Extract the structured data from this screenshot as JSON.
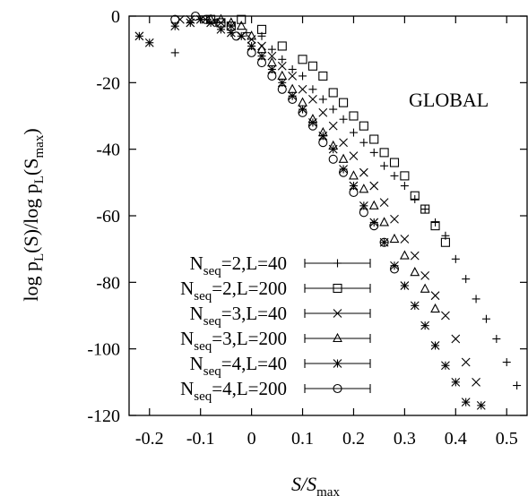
{
  "chart_data": {
    "type": "scatter",
    "title": "",
    "annotation": "GLOBAL",
    "xlabel": {
      "main": "S/S",
      "sub": "max"
    },
    "ylabel": {
      "pre": "log p",
      "sub1": "L",
      "mid": "(S)/log p",
      "sub2": "L",
      "mid2": "(S",
      "sub3": "max",
      "post": ")"
    },
    "xlim": [
      -0.24,
      0.54
    ],
    "ylim": [
      -120,
      0
    ],
    "x_ticks": [
      -0.2,
      -0.1,
      0,
      0.1,
      0.2,
      0.3,
      0.4,
      0.5
    ],
    "x_tick_labels": [
      "-0.2",
      "-0.1",
      "0",
      "0.1",
      "0.2",
      "0.3",
      "0.4",
      "0.5"
    ],
    "y_ticks": [
      0,
      -20,
      -40,
      -60,
      -80,
      -100,
      -120
    ],
    "y_tick_labels": [
      "0",
      "-20",
      "-40",
      "-60",
      "-80",
      "-100",
      "-120"
    ],
    "grid": false,
    "legend_position": "bottom-left",
    "series": [
      {
        "name": {
          "pre": "N",
          "sub": "seq",
          "post": "=2,L=40"
        },
        "marker": "plus",
        "x": [
          -0.15,
          -0.1,
          -0.07,
          -0.04,
          -0.01,
          0.02,
          0.04,
          0.06,
          0.08,
          0.1,
          0.12,
          0.14,
          0.16,
          0.18,
          0.2,
          0.22,
          0.24,
          0.26,
          0.28,
          0.3,
          0.32,
          0.34,
          0.36,
          0.38,
          0.4,
          0.42,
          0.44,
          0.46,
          0.48,
          0.5,
          0.52
        ],
        "y": [
          -11,
          -1,
          -2,
          -3,
          -5,
          -6,
          -10,
          -13,
          -16,
          -18,
          -22,
          -25,
          -28,
          -31,
          -35,
          -38,
          -41,
          -45,
          -48,
          -51,
          -55,
          -58,
          -62,
          -66,
          -73,
          -79,
          -85,
          -91,
          -97,
          -104,
          -111
        ]
      },
      {
        "name": {
          "pre": "N",
          "sub": "seq",
          "post": "=2,L=200"
        },
        "marker": "square",
        "x": [
          -0.08,
          -0.06,
          -0.04,
          -0.02,
          0.02,
          0.06,
          0.1,
          0.12,
          0.14,
          0.16,
          0.18,
          0.2,
          0.22,
          0.24,
          0.26,
          0.28,
          0.3,
          0.32,
          0.34,
          0.36,
          0.38
        ],
        "y": [
          -1,
          -2,
          -3,
          -1,
          -4,
          -9,
          -13,
          -15,
          -18,
          -23,
          -26,
          -30,
          -33,
          -37,
          -41,
          -44,
          -48,
          -54,
          -58,
          -63,
          -68
        ]
      },
      {
        "name": {
          "pre": "N",
          "sub": "seq",
          "post": "=3,L=40"
        },
        "marker": "cross",
        "x": [
          -0.14,
          -0.12,
          -0.09,
          -0.06,
          -0.04,
          -0.02,
          0,
          0.02,
          0.04,
          0.06,
          0.08,
          0.1,
          0.12,
          0.14,
          0.16,
          0.18,
          0.2,
          0.22,
          0.24,
          0.26,
          0.28,
          0.3,
          0.32,
          0.34,
          0.36,
          0.38,
          0.4,
          0.42,
          0.44
        ],
        "y": [
          -1,
          -1,
          -1,
          -2,
          -3,
          -6,
          -7,
          -9,
          -12,
          -15,
          -18,
          -22,
          -25,
          -29,
          -33,
          -38,
          -42,
          -47,
          -51,
          -56,
          -61,
          -67,
          -72,
          -78,
          -84,
          -90,
          -97,
          -104,
          -110
        ]
      },
      {
        "name": {
          "pre": "N",
          "sub": "seq",
          "post": "=3,L=200"
        },
        "marker": "triangle",
        "x": [
          -0.08,
          -0.06,
          -0.04,
          -0.02,
          0,
          0.02,
          0.04,
          0.06,
          0.08,
          0.1,
          0.12,
          0.14,
          0.16,
          0.18,
          0.2,
          0.22,
          0.24,
          0.26,
          0.28,
          0.3,
          0.32,
          0.34,
          0.36
        ],
        "y": [
          -1,
          -1,
          -2,
          -3,
          -6,
          -10,
          -14,
          -18,
          -22,
          -26,
          -31,
          -35,
          -39,
          -43,
          -48,
          -52,
          -57,
          -62,
          -67,
          -72,
          -77,
          -82,
          -88
        ]
      },
      {
        "name": {
          "pre": "N",
          "sub": "seq",
          "post": "=4,L=40"
        },
        "marker": "asterisk",
        "x": [
          -0.22,
          -0.2,
          -0.15,
          -0.12,
          -0.1,
          -0.08,
          -0.06,
          -0.04,
          -0.02,
          0,
          0.02,
          0.04,
          0.06,
          0.08,
          0.1,
          0.12,
          0.14,
          0.16,
          0.18,
          0.2,
          0.22,
          0.24,
          0.26,
          0.28,
          0.3,
          0.32,
          0.34,
          0.36,
          0.38,
          0.4,
          0.42,
          0.45
        ],
        "y": [
          -6,
          -8,
          -3,
          -2,
          -1,
          -2,
          -4,
          -5,
          -6,
          -9,
          -12,
          -16,
          -20,
          -24,
          -28,
          -32,
          -36,
          -40,
          -46,
          -51,
          -57,
          -62,
          -68,
          -75,
          -81,
          -87,
          -93,
          -99,
          -105,
          -110,
          -116,
          -117
        ]
      },
      {
        "name": {
          "pre": "N",
          "sub": "seq",
          "post": "=4,L=200"
        },
        "marker": "circle",
        "x": [
          -0.15,
          -0.11,
          -0.09,
          -0.03,
          0,
          0.02,
          0.04,
          0.06,
          0.08,
          0.1,
          0.12,
          0.14,
          0.16,
          0.18,
          0.2,
          0.22,
          0.24,
          0.26,
          0.28
        ],
        "y": [
          -1,
          0,
          -1,
          -6,
          -11,
          -14,
          -18,
          -22,
          -25,
          -29,
          -33,
          -38,
          -43,
          -47,
          -53,
          -59,
          -63,
          -68,
          -76
        ]
      }
    ]
  }
}
